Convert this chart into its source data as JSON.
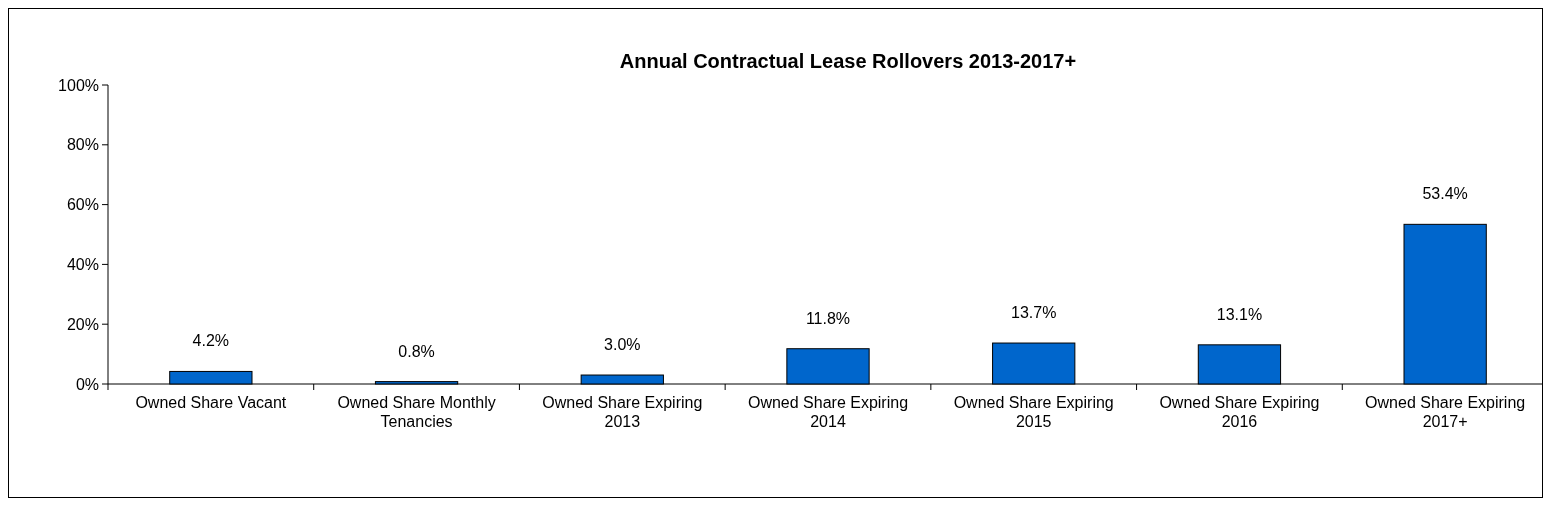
{
  "chart_data": {
    "type": "bar",
    "title": "Annual Contractual Lease Rollovers 2013-2017+",
    "categories": [
      "Owned Share Vacant",
      "Owned Share Monthly Tenancies",
      "Owned Share Expiring 2013",
      "Owned Share Expiring 2014",
      "Owned Share Expiring 2015",
      "Owned Share Expiring 2016",
      "Owned Share Expiring 2017+"
    ],
    "values": [
      4.2,
      0.8,
      3.0,
      11.8,
      13.7,
      13.1,
      53.4
    ],
    "value_labels": [
      "4.2%",
      "0.8%",
      "3.0%",
      "11.8%",
      "13.7%",
      "13.1%",
      "53.4%"
    ],
    "color": "#0066cc",
    "ylim": [
      0,
      100
    ],
    "yticks": [
      {
        "value": 0,
        "label": "0%"
      },
      {
        "value": 20,
        "label": "20%"
      },
      {
        "value": 40,
        "label": "40%"
      },
      {
        "value": 60,
        "label": "60%"
      },
      {
        "value": 80,
        "label": "80%"
      },
      {
        "value": 100,
        "label": "100%"
      }
    ],
    "grid": false
  }
}
